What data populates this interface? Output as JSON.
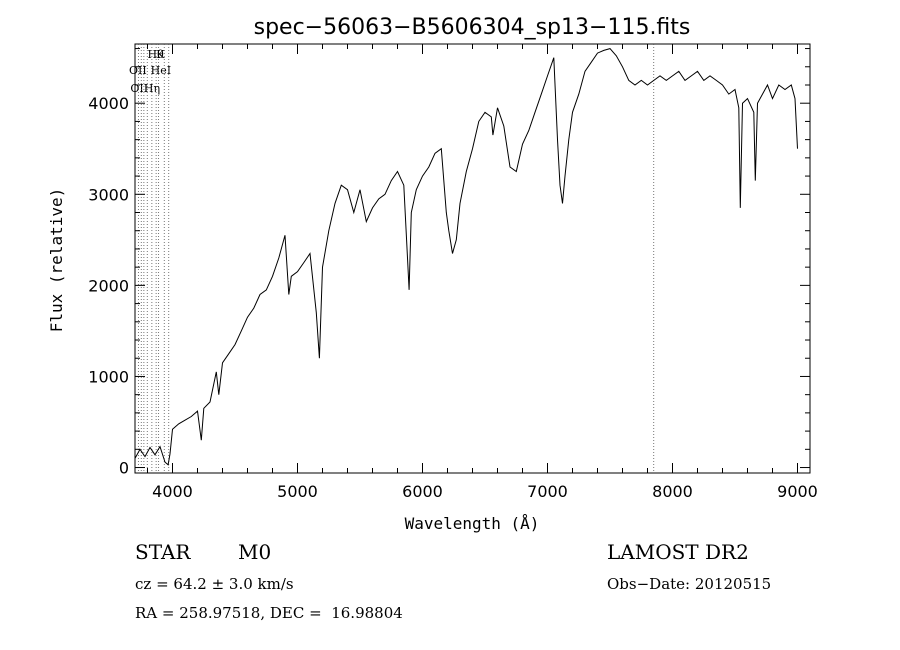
{
  "chart_data": {
    "type": "line",
    "title": "spec−56063−B5606304_sp13−115.fits",
    "xlabel": "Wavelength (Å)",
    "ylabel": "Flux (relative)",
    "xlim": [
      3700,
      9100
    ],
    "ylim": [
      -60,
      4650
    ],
    "x_ticks": [
      {
        "value": 4000,
        "label": "4000"
      },
      {
        "value": 5000,
        "label": "5000"
      },
      {
        "value": 6000,
        "label": "6000"
      },
      {
        "value": 7000,
        "label": "7000"
      },
      {
        "value": 8000,
        "label": "8000"
      },
      {
        "value": 9000,
        "label": "9000"
      }
    ],
    "y_ticks": [
      {
        "value": 0,
        "label": "0"
      },
      {
        "value": 1000,
        "label": "1000"
      },
      {
        "value": 2000,
        "label": "2000"
      },
      {
        "value": 3000,
        "label": "3000"
      },
      {
        "value": 4000,
        "label": "4000"
      }
    ],
    "line_markers": [
      {
        "x": 3727,
        "label": "OII",
        "row": 3
      },
      {
        "x": 3750,
        "label": "",
        "row": 0
      },
      {
        "x": 3771,
        "label": "",
        "row": 0
      },
      {
        "x": 3798,
        "label": "",
        "row": 0
      },
      {
        "x": 3835,
        "label": "Hη",
        "row": 3
      },
      {
        "x": 3869,
        "label": "",
        "row": 0
      },
      {
        "x": 3889,
        "label": "HeI",
        "row": 2
      },
      {
        "x": 3934,
        "label": "K",
        "row": 1
      },
      {
        "x": 3970,
        "label": "",
        "row": 0
      },
      {
        "x": 7850,
        "label": "",
        "row": 0
      }
    ],
    "marker_label_H": "Hθ",
    "marker_label_OII2": "OII",
    "series": [
      {
        "points": [
          [
            3700,
            100
          ],
          [
            3740,
            200
          ],
          [
            3780,
            120
          ],
          [
            3820,
            220
          ],
          [
            3860,
            140
          ],
          [
            3900,
            230
          ],
          [
            3940,
            60
          ],
          [
            3965,
            30
          ],
          [
            3980,
            150
          ],
          [
            4000,
            420
          ],
          [
            4050,
            480
          ],
          [
            4100,
            520
          ],
          [
            4150,
            560
          ],
          [
            4200,
            620
          ],
          [
            4230,
            300
          ],
          [
            4250,
            650
          ],
          [
            4300,
            720
          ],
          [
            4350,
            1050
          ],
          [
            4370,
            800
          ],
          [
            4400,
            1150
          ],
          [
            4450,
            1250
          ],
          [
            4500,
            1350
          ],
          [
            4550,
            1500
          ],
          [
            4600,
            1650
          ],
          [
            4650,
            1750
          ],
          [
            4700,
            1900
          ],
          [
            4750,
            1950
          ],
          [
            4800,
            2100
          ],
          [
            4850,
            2300
          ],
          [
            4900,
            2550
          ],
          [
            4930,
            1900
          ],
          [
            4950,
            2100
          ],
          [
            5000,
            2150
          ],
          [
            5050,
            2250
          ],
          [
            5100,
            2350
          ],
          [
            5150,
            1700
          ],
          [
            5175,
            1200
          ],
          [
            5200,
            2200
          ],
          [
            5250,
            2600
          ],
          [
            5300,
            2900
          ],
          [
            5350,
            3100
          ],
          [
            5400,
            3050
          ],
          [
            5450,
            2800
          ],
          [
            5500,
            3050
          ],
          [
            5550,
            2700
          ],
          [
            5600,
            2850
          ],
          [
            5650,
            2950
          ],
          [
            5700,
            3000
          ],
          [
            5750,
            3150
          ],
          [
            5800,
            3250
          ],
          [
            5850,
            3100
          ],
          [
            5880,
            2300
          ],
          [
            5893,
            1950
          ],
          [
            5910,
            2800
          ],
          [
            5950,
            3050
          ],
          [
            6000,
            3200
          ],
          [
            6050,
            3300
          ],
          [
            6100,
            3450
          ],
          [
            6150,
            3500
          ],
          [
            6170,
            3150
          ],
          [
            6190,
            2800
          ],
          [
            6210,
            2600
          ],
          [
            6240,
            2350
          ],
          [
            6270,
            2500
          ],
          [
            6300,
            2900
          ],
          [
            6350,
            3250
          ],
          [
            6400,
            3500
          ],
          [
            6450,
            3800
          ],
          [
            6500,
            3900
          ],
          [
            6550,
            3850
          ],
          [
            6563,
            3650
          ],
          [
            6600,
            3950
          ],
          [
            6650,
            3750
          ],
          [
            6700,
            3300
          ],
          [
            6750,
            3250
          ],
          [
            6800,
            3550
          ],
          [
            6850,
            3700
          ],
          [
            6900,
            3900
          ],
          [
            6950,
            4100
          ],
          [
            7000,
            4300
          ],
          [
            7050,
            4500
          ],
          [
            7080,
            3600
          ],
          [
            7100,
            3100
          ],
          [
            7120,
            2900
          ],
          [
            7140,
            3200
          ],
          [
            7170,
            3600
          ],
          [
            7200,
            3900
          ],
          [
            7250,
            4100
          ],
          [
            7300,
            4350
          ],
          [
            7350,
            4450
          ],
          [
            7400,
            4550
          ],
          [
            7450,
            4580
          ],
          [
            7500,
            4600
          ],
          [
            7550,
            4520
          ],
          [
            7600,
            4400
          ],
          [
            7650,
            4250
          ],
          [
            7700,
            4200
          ],
          [
            7750,
            4250
          ],
          [
            7800,
            4200
          ],
          [
            7850,
            4250
          ],
          [
            7900,
            4300
          ],
          [
            7950,
            4250
          ],
          [
            8000,
            4300
          ],
          [
            8050,
            4350
          ],
          [
            8100,
            4250
          ],
          [
            8150,
            4300
          ],
          [
            8200,
            4350
          ],
          [
            8250,
            4250
          ],
          [
            8300,
            4300
          ],
          [
            8350,
            4250
          ],
          [
            8400,
            4200
          ],
          [
            8450,
            4100
          ],
          [
            8500,
            4150
          ],
          [
            8530,
            3950
          ],
          [
            8542,
            2850
          ],
          [
            8560,
            4000
          ],
          [
            8600,
            4050
          ],
          [
            8650,
            3900
          ],
          [
            8662,
            3150
          ],
          [
            8680,
            4000
          ],
          [
            8720,
            4100
          ],
          [
            8760,
            4200
          ],
          [
            8800,
            4050
          ],
          [
            8850,
            4200
          ],
          [
            8900,
            4150
          ],
          [
            8950,
            4200
          ],
          [
            8980,
            4050
          ],
          [
            9000,
            3500
          ]
        ]
      }
    ]
  },
  "info": {
    "object_class": "STAR",
    "subclass": "M0",
    "survey": "LAMOST DR2",
    "cz": "cz = 64.2 ± 3.0 km/s",
    "obs_date": "Obs−Date: 20120515",
    "coords": "RA = 258.97518, DEC =  16.98804"
  }
}
